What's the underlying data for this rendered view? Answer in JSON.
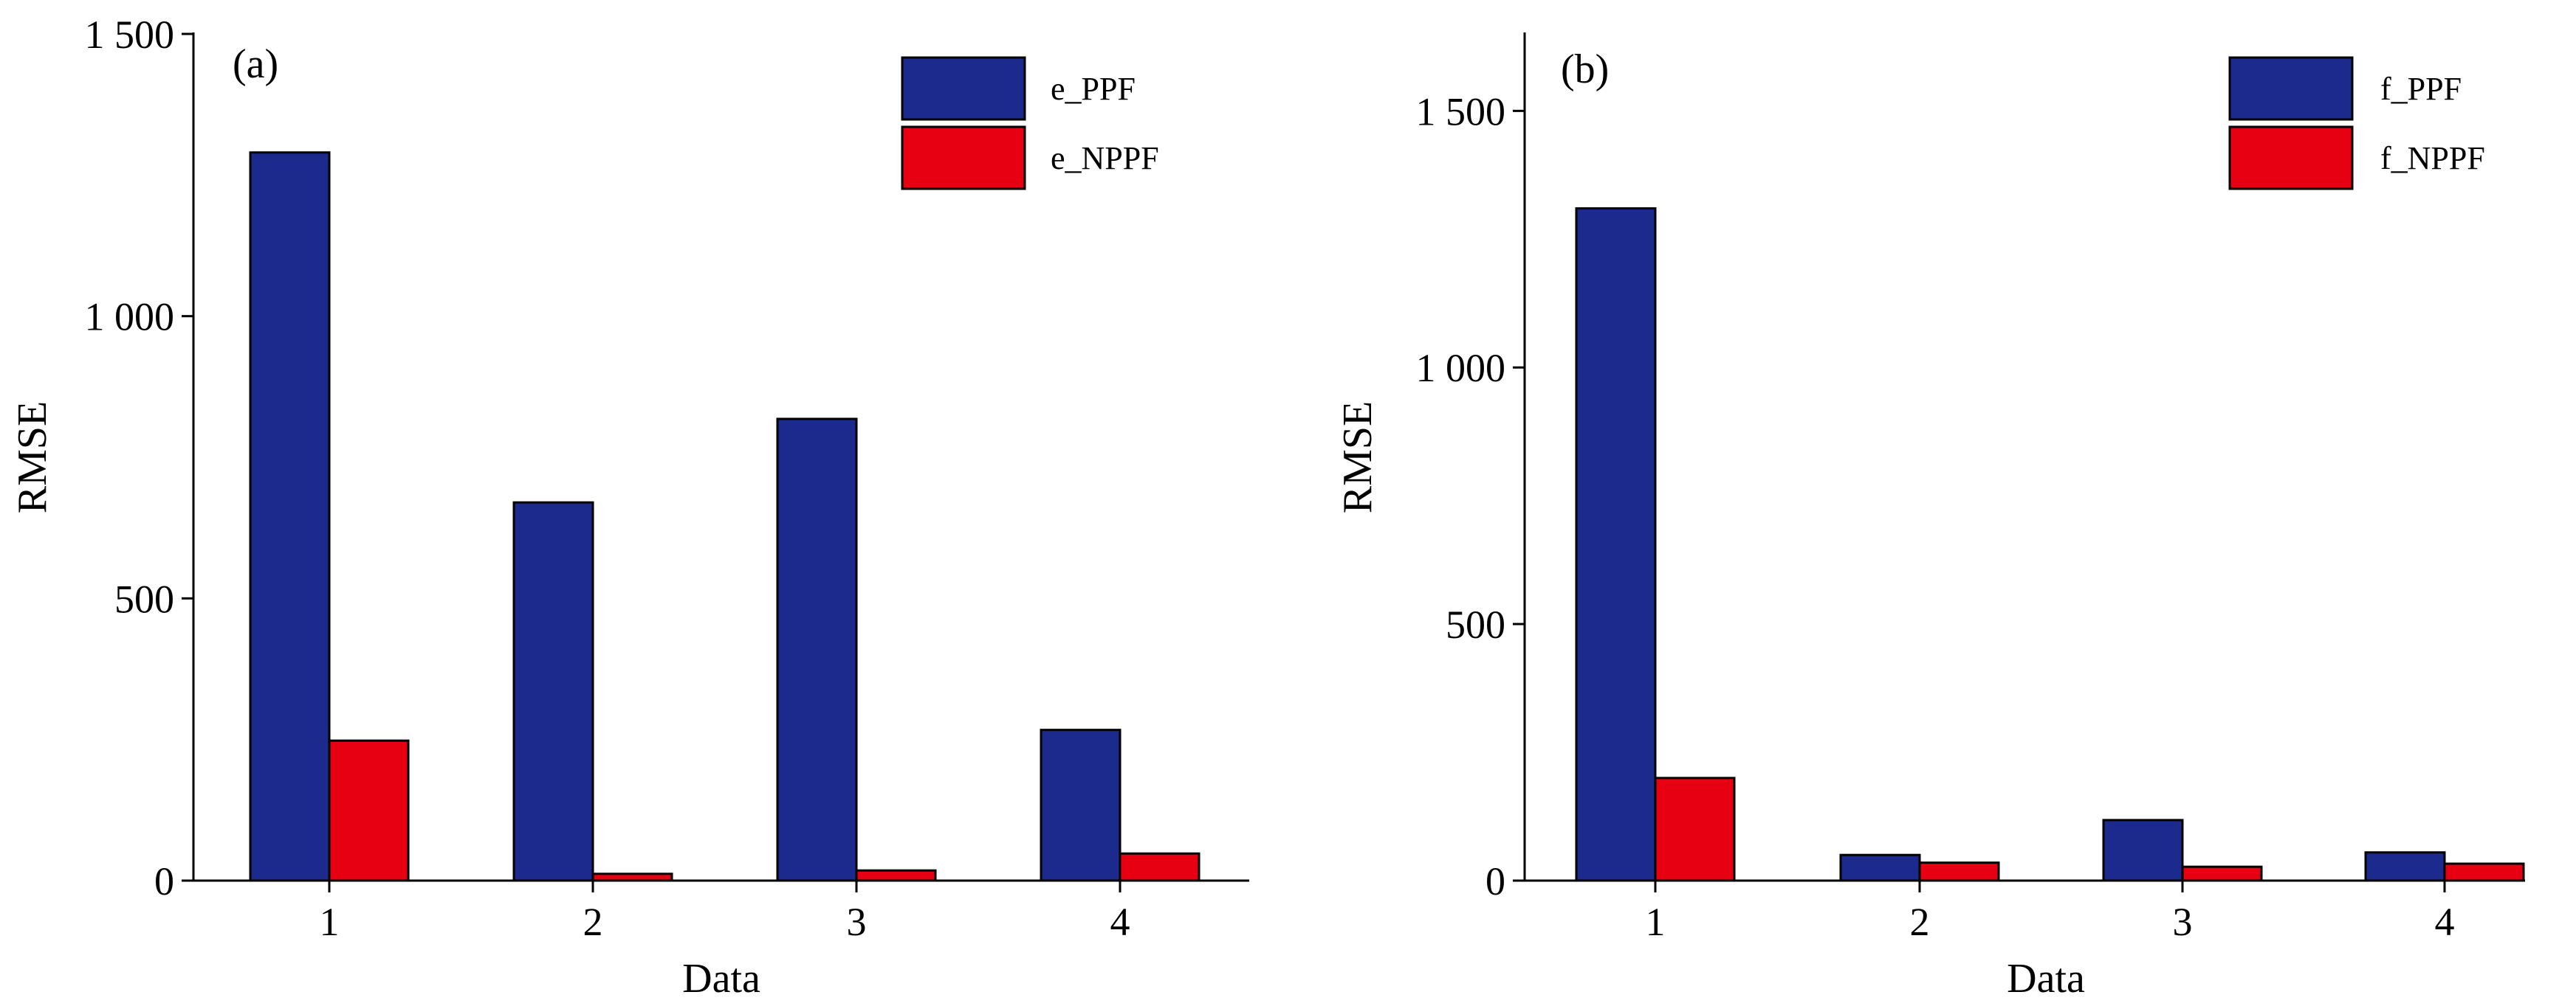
{
  "chart_data": [
    {
      "type": "bar",
      "panel_label": "(a)",
      "categories": [
        "1",
        "2",
        "3",
        "4"
      ],
      "series": [
        {
          "name": "e_PPF",
          "color": "#1b2a8c",
          "values": [
            1290,
            670,
            818,
            267
          ]
        },
        {
          "name": "e_NPPF",
          "color": "#e60012",
          "values": [
            248,
            12,
            18,
            48
          ]
        }
      ],
      "xlabel": "Data",
      "ylabel": "RMSE",
      "ylim": [
        0,
        1500
      ],
      "yticks": [
        0,
        500,
        1000,
        1500
      ],
      "ytick_labels": [
        "0",
        "500",
        "1 000",
        "1 500"
      ],
      "grid": false,
      "legend_position": "top-right"
    },
    {
      "type": "bar",
      "panel_label": "(b)",
      "categories": [
        "1",
        "2",
        "3",
        "4"
      ],
      "series": [
        {
          "name": "f_PPF",
          "color": "#1b2a8c",
          "values": [
            1310,
            50,
            118,
            55
          ]
        },
        {
          "name": "f_NPPF",
          "color": "#e60012",
          "values": [
            200,
            35,
            27,
            33
          ]
        }
      ],
      "xlabel": "Data",
      "ylabel": "RMSE",
      "ylim": [
        0,
        1650
      ],
      "yticks": [
        0,
        500,
        1000,
        1500
      ],
      "ytick_labels": [
        "0",
        "500",
        "1 000",
        "1 500"
      ],
      "grid": false,
      "legend_position": "top-right"
    }
  ]
}
